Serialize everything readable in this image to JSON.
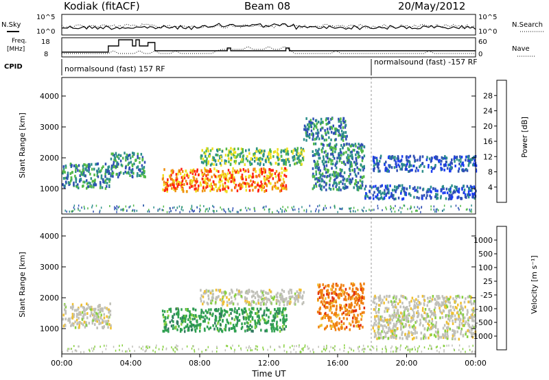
{
  "header": {
    "station": "Kodiak (fitACF)",
    "beam": "Beam 08",
    "date": "20/May/2012"
  },
  "top_panels": {
    "nsky_label": "N.Sky",
    "nsearch_label": "N.Search",
    "noise_ticks": [
      "10^5",
      "10^0"
    ],
    "freq_label_1": "Freq.",
    "freq_label_2": "[MHz]",
    "freq_ticks": [
      "18",
      "8"
    ],
    "nave_label": "Nave",
    "nave_ticks": [
      "60",
      "0"
    ],
    "cpid_label": "CPID",
    "cpid_1": "normalsound (fast) 157 RF",
    "cpid_2": "normalsound (fast) -157 RF"
  },
  "time_axis": {
    "label": "Time UT",
    "ticks": [
      "00:00",
      "04:00",
      "08:00",
      "12:00",
      "16:00",
      "20:00",
      "00:00"
    ]
  },
  "chart_data": [
    {
      "type": "heatmap",
      "title": "",
      "xlabel": "Time UT",
      "ylabel": "Slant Range [km]",
      "xlim": [
        0,
        24
      ],
      "ylim": [
        180,
        4600
      ],
      "yticks": [
        "1000",
        "2000",
        "3000",
        "4000"
      ],
      "colorbar": {
        "label": "Power [dB]",
        "ticks": [
          "28",
          "24",
          "20",
          "16",
          "12",
          "8",
          "4"
        ],
        "range": [
          0,
          30
        ],
        "colors": [
          "#1a3cf0",
          "#2f4fb4",
          "#2c8e8a",
          "#52b848",
          "#f0e020",
          "#f09010",
          "#ff2010"
        ]
      },
      "features": [
        {
          "t0": 0.0,
          "t1": 2.8,
          "r0": 1050,
          "r1": 1850,
          "level": 12
        },
        {
          "t0": 2.8,
          "t1": 4.8,
          "r0": 1400,
          "r1": 2200,
          "level": 8
        },
        {
          "t0": 5.8,
          "t1": 13.0,
          "r0": 950,
          "r1": 1700,
          "level": 26
        },
        {
          "t0": 8.0,
          "t1": 14.0,
          "r0": 1800,
          "r1": 2350,
          "level": 14
        },
        {
          "t0": 14.0,
          "t1": 16.5,
          "r0": 2600,
          "r1": 3350,
          "level": 10
        },
        {
          "t0": 14.5,
          "t1": 17.5,
          "r0": 1000,
          "r1": 2500,
          "level": 10
        },
        {
          "t0": 18.0,
          "t1": 24.0,
          "r0": 1600,
          "r1": 2100,
          "level": 6
        },
        {
          "t0": 17.5,
          "t1": 24.0,
          "r0": 700,
          "r1": 1150,
          "level": 6
        }
      ]
    },
    {
      "type": "heatmap",
      "title": "",
      "xlabel": "Time UT",
      "ylabel": "Slant Range [km]",
      "xlim": [
        0,
        24
      ],
      "ylim": [
        180,
        4600
      ],
      "yticks": [
        "1000",
        "2000",
        "3000",
        "4000"
      ],
      "colorbar": {
        "label": "Velocity [m s⁻¹]",
        "ticks": [
          "1000",
          "500",
          "100",
          "25",
          "-25",
          "-100",
          "-500",
          "-1000"
        ],
        "colors": [
          "#2040c0",
          "#307860",
          "#2ea050",
          "#88d040",
          "#c0c0b8",
          "#f0c030",
          "#f08010",
          "#e03010",
          "#ff1010"
        ]
      },
      "features": [
        {
          "t0": 0.0,
          "t1": 2.8,
          "r0": 1050,
          "r1": 1850,
          "value": 0
        },
        {
          "t0": 5.8,
          "t1": 13.0,
          "r0": 950,
          "r1": 1700,
          "value": 150
        },
        {
          "t0": 8.0,
          "t1": 14.0,
          "r0": 1800,
          "r1": 2300,
          "value": 0
        },
        {
          "t0": 14.8,
          "t1": 17.5,
          "r0": 1000,
          "r1": 2500,
          "value": -200
        },
        {
          "t0": 18.0,
          "t1": 24.0,
          "r0": 700,
          "r1": 2100,
          "value": 0
        }
      ]
    }
  ]
}
